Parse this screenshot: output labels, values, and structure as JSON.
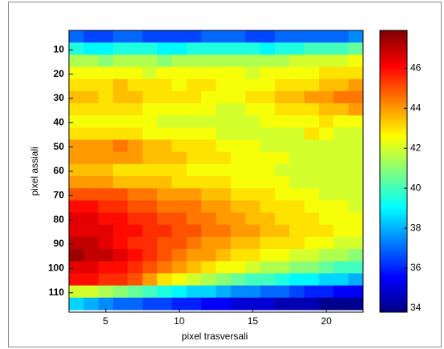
{
  "chart_data": {
    "type": "heatmap",
    "xlabel": "pixel trasversali",
    "ylabel": "pixel assiali",
    "x": [
      3,
      4,
      5,
      6,
      7,
      8,
      9,
      10,
      11,
      12,
      13,
      14,
      15,
      16,
      17,
      18,
      19,
      20,
      21,
      22
    ],
    "y": [
      4.5,
      9.5,
      14.5,
      19.5,
      24.5,
      29.5,
      34.5,
      39.5,
      44.5,
      49.5,
      54.5,
      59.5,
      64.5,
      69.5,
      74.5,
      79.5,
      84.5,
      89.5,
      94.5,
      99.5,
      104.5,
      109.5,
      114.5
    ],
    "z": [
      [
        37,
        36.5,
        36.5,
        37,
        37,
        36.5,
        36.5,
        36.5,
        36.5,
        37,
        37,
        37,
        36.5,
        36.5,
        37,
        37,
        37,
        37,
        37,
        37.5
      ],
      [
        39.5,
        39,
        39,
        39.5,
        39.5,
        39.5,
        39,
        39,
        39.5,
        39.5,
        39.5,
        39.5,
        39.5,
        39,
        39.5,
        39.5,
        40,
        40,
        40,
        40.5
      ],
      [
        41.5,
        41.5,
        41,
        41.5,
        41.5,
        41.5,
        41,
        41.5,
        41.5,
        41.5,
        41.5,
        41.5,
        41.5,
        41.5,
        41.5,
        42,
        42,
        42,
        42,
        42.5
      ],
      [
        42.5,
        42.5,
        42.5,
        42.5,
        42.5,
        42,
        42.5,
        42.5,
        42.5,
        42.5,
        42.5,
        42.5,
        42,
        42.5,
        42.5,
        42.5,
        42.5,
        43,
        43,
        43
      ],
      [
        43,
        43,
        43,
        43.5,
        43,
        43,
        43,
        42.5,
        43,
        43,
        42.5,
        42.5,
        42.5,
        42.5,
        43,
        43,
        43,
        43.5,
        43.5,
        44
      ],
      [
        43.5,
        43.5,
        43,
        43.5,
        43.5,
        43,
        43,
        43,
        43,
        42.5,
        42.5,
        42.5,
        43,
        43,
        43.5,
        43.5,
        44,
        44,
        44.5,
        44.5
      ],
      [
        43,
        43,
        43,
        43,
        43,
        42.5,
        42.5,
        42.5,
        42.5,
        42.5,
        42,
        42,
        42.5,
        42.5,
        43,
        43,
        43,
        43.5,
        43.5,
        44
      ],
      [
        42.5,
        42.5,
        42.5,
        42.5,
        42.5,
        42.5,
        42,
        42,
        42,
        42,
        42,
        42,
        42,
        42.5,
        42.5,
        42.5,
        42.5,
        43,
        42.5,
        42.5
      ],
      [
        43,
        43,
        43,
        43,
        43,
        42.5,
        42.5,
        42.5,
        42.5,
        42.5,
        42,
        42,
        42,
        42,
        42,
        42,
        43,
        42.5,
        42,
        42
      ],
      [
        44,
        44,
        44,
        44.5,
        44,
        43.5,
        43.5,
        43,
        43,
        43,
        42.5,
        42.5,
        42.5,
        42,
        42,
        42,
        42,
        42,
        42,
        42
      ],
      [
        44,
        44,
        44,
        44,
        44,
        43.5,
        43.5,
        43.5,
        43,
        43,
        43,
        42.5,
        42.5,
        42.5,
        42.5,
        42,
        42,
        42,
        42,
        42
      ],
      [
        43.5,
        43.5,
        43.5,
        43,
        43,
        43,
        43,
        43,
        42.5,
        42.5,
        42.5,
        42.5,
        42.5,
        42.5,
        42,
        42,
        42,
        42,
        42,
        42
      ],
      [
        44,
        44,
        44,
        43.5,
        43.5,
        43.5,
        43.5,
        43,
        43,
        43,
        43,
        42.5,
        42.5,
        42.5,
        42.5,
        42,
        42,
        42,
        42,
        42
      ],
      [
        45,
        45,
        45,
        45,
        44.5,
        44.5,
        44,
        44,
        44,
        43.5,
        43.5,
        43,
        43,
        43,
        42.5,
        42.5,
        42.5,
        42,
        42,
        42
      ],
      [
        46,
        46,
        45.5,
        45.5,
        45,
        45,
        44.5,
        44.5,
        44.5,
        44,
        44,
        43.5,
        43.5,
        43,
        43,
        43,
        42.5,
        42.5,
        42.5,
        42
      ],
      [
        46.5,
        46.5,
        46,
        46,
        45.5,
        45.5,
        45,
        45,
        44.5,
        44.5,
        44,
        44,
        43.5,
        43.5,
        43,
        43,
        43,
        42.5,
        42.5,
        42.5
      ],
      [
        46.5,
        46.5,
        46.5,
        46,
        46,
        45.5,
        45.5,
        45,
        45,
        44.5,
        44.5,
        44,
        44,
        43.5,
        43.5,
        43,
        43,
        43,
        42.5,
        42.5
      ],
      [
        47,
        47,
        46.5,
        46,
        45.5,
        45.5,
        45,
        45,
        44.5,
        44,
        44,
        43.5,
        43.5,
        43,
        43,
        43,
        42.5,
        42.5,
        42,
        42
      ],
      [
        47.5,
        47,
        47,
        46.5,
        46,
        45.5,
        45,
        44.5,
        44,
        44,
        43.5,
        43,
        43,
        42.5,
        42.5,
        42,
        42,
        41.5,
        41.5,
        41
      ],
      [
        46.5,
        46.5,
        46,
        46,
        45.5,
        45,
        44.5,
        44,
        43.5,
        43,
        42.5,
        42.5,
        42,
        41.5,
        41.5,
        41,
        41,
        40.5,
        40,
        40
      ],
      [
        46,
        46,
        45.5,
        45.5,
        45,
        44,
        43,
        42.5,
        42,
        41.5,
        41,
        40.5,
        40,
        40,
        39.5,
        39,
        39,
        38.5,
        38.5,
        38
      ],
      [
        42,
        42,
        41.5,
        41,
        40.5,
        40,
        39.5,
        39,
        38.5,
        38.5,
        38,
        37.5,
        37.5,
        37,
        37,
        36.5,
        36,
        36,
        35.5,
        35.5
      ],
      [
        38.5,
        38,
        37.5,
        37,
        37,
        36.5,
        36.5,
        36,
        36,
        35.5,
        35.5,
        35,
        35,
        35,
        34.5,
        34.5,
        34.5,
        34,
        34,
        34
      ]
    ],
    "xlim": [
      2.5,
      22.5
    ],
    "ylim": [
      2,
      118
    ],
    "y_reversed": true,
    "xticks": [
      5,
      10,
      15,
      20
    ],
    "yticks": [
      10,
      20,
      30,
      40,
      50,
      60,
      70,
      80,
      90,
      100,
      110
    ],
    "colormap": "jet",
    "clim": [
      33.8,
      47.9
    ],
    "cticks": [
      34,
      36,
      38,
      40,
      42,
      44,
      46
    ]
  }
}
